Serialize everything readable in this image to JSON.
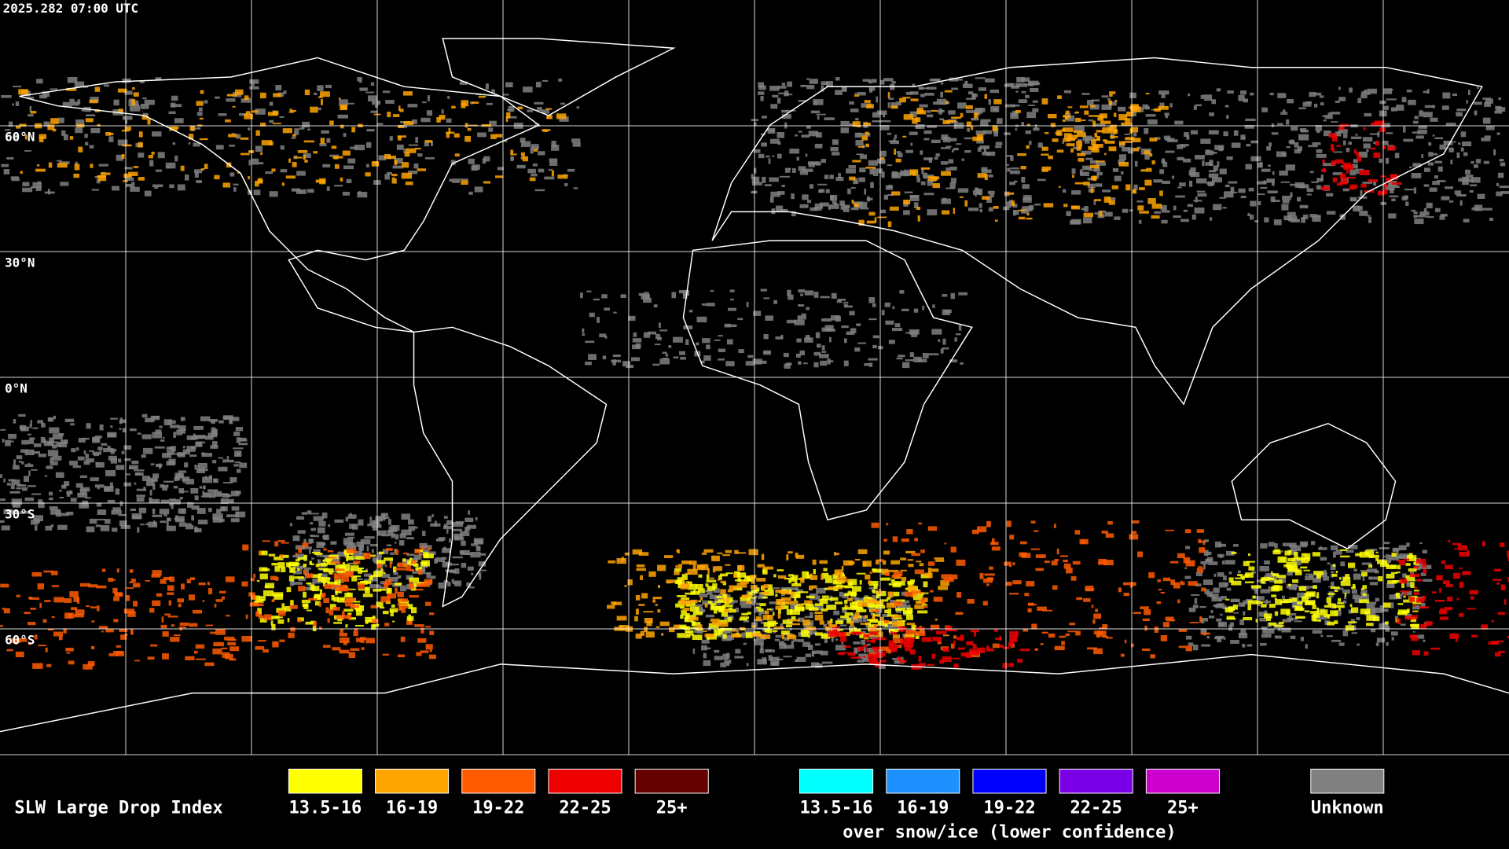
{
  "header": {
    "timestamp": "2025.282 07:00 UTC"
  },
  "map": {
    "latitude_labels": [
      "60°N",
      "30°N",
      "0°N",
      "30°S",
      "60°S"
    ]
  },
  "legend": {
    "title": "SLW Large Drop Index",
    "liquid": [
      {
        "label": "13.5-16",
        "color": "#ffff00"
      },
      {
        "label": "16-19",
        "color": "#ffa500"
      },
      {
        "label": "19-22",
        "color": "#ff5a00"
      },
      {
        "label": "22-25",
        "color": "#ee0000"
      },
      {
        "label": "25+",
        "color": "#640000"
      }
    ],
    "ice": [
      {
        "label": "13.5-16",
        "color": "#00ffff"
      },
      {
        "label": "16-19",
        "color": "#1e90ff"
      },
      {
        "label": "19-22",
        "color": "#0000ff"
      },
      {
        "label": "22-25",
        "color": "#7a00e8"
      },
      {
        "label": "25+",
        "color": "#cc00cc"
      }
    ],
    "ice_note": "over snow/ice (lower confidence)",
    "unknown": {
      "label": "Unknown",
      "color": "#808080"
    }
  }
}
